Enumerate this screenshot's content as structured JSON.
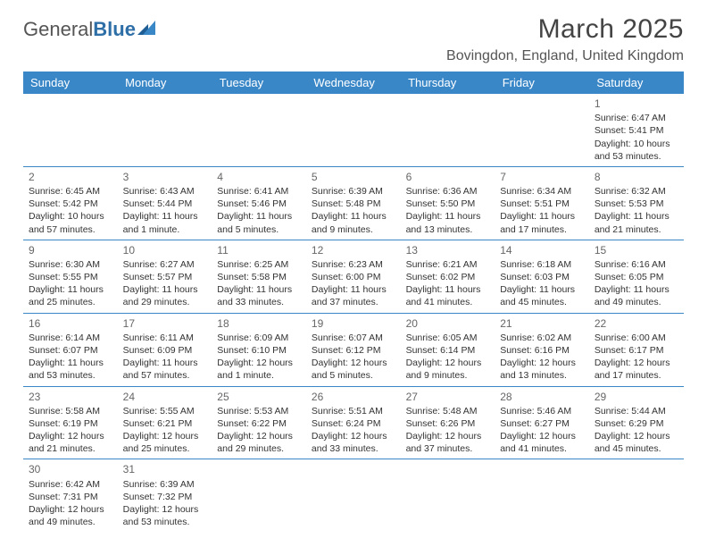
{
  "brand": {
    "part1": "General",
    "part2": "Blue"
  },
  "title": "March 2025",
  "location": "Bovingdon, England, United Kingdom",
  "colors": {
    "header_bg": "#3a87c8",
    "header_text": "#ffffff",
    "border": "#3a87c8",
    "text": "#333333",
    "daynum": "#666666",
    "background": "#ffffff"
  },
  "daynames": [
    "Sunday",
    "Monday",
    "Tuesday",
    "Wednesday",
    "Thursday",
    "Friday",
    "Saturday"
  ],
  "weeks": [
    [
      null,
      null,
      null,
      null,
      null,
      null,
      {
        "n": "1",
        "sr": "Sunrise: 6:47 AM",
        "ss": "Sunset: 5:41 PM",
        "dl": "Daylight: 10 hours and 53 minutes."
      }
    ],
    [
      {
        "n": "2",
        "sr": "Sunrise: 6:45 AM",
        "ss": "Sunset: 5:42 PM",
        "dl": "Daylight: 10 hours and 57 minutes."
      },
      {
        "n": "3",
        "sr": "Sunrise: 6:43 AM",
        "ss": "Sunset: 5:44 PM",
        "dl": "Daylight: 11 hours and 1 minute."
      },
      {
        "n": "4",
        "sr": "Sunrise: 6:41 AM",
        "ss": "Sunset: 5:46 PM",
        "dl": "Daylight: 11 hours and 5 minutes."
      },
      {
        "n": "5",
        "sr": "Sunrise: 6:39 AM",
        "ss": "Sunset: 5:48 PM",
        "dl": "Daylight: 11 hours and 9 minutes."
      },
      {
        "n": "6",
        "sr": "Sunrise: 6:36 AM",
        "ss": "Sunset: 5:50 PM",
        "dl": "Daylight: 11 hours and 13 minutes."
      },
      {
        "n": "7",
        "sr": "Sunrise: 6:34 AM",
        "ss": "Sunset: 5:51 PM",
        "dl": "Daylight: 11 hours and 17 minutes."
      },
      {
        "n": "8",
        "sr": "Sunrise: 6:32 AM",
        "ss": "Sunset: 5:53 PM",
        "dl": "Daylight: 11 hours and 21 minutes."
      }
    ],
    [
      {
        "n": "9",
        "sr": "Sunrise: 6:30 AM",
        "ss": "Sunset: 5:55 PM",
        "dl": "Daylight: 11 hours and 25 minutes."
      },
      {
        "n": "10",
        "sr": "Sunrise: 6:27 AM",
        "ss": "Sunset: 5:57 PM",
        "dl": "Daylight: 11 hours and 29 minutes."
      },
      {
        "n": "11",
        "sr": "Sunrise: 6:25 AM",
        "ss": "Sunset: 5:58 PM",
        "dl": "Daylight: 11 hours and 33 minutes."
      },
      {
        "n": "12",
        "sr": "Sunrise: 6:23 AM",
        "ss": "Sunset: 6:00 PM",
        "dl": "Daylight: 11 hours and 37 minutes."
      },
      {
        "n": "13",
        "sr": "Sunrise: 6:21 AM",
        "ss": "Sunset: 6:02 PM",
        "dl": "Daylight: 11 hours and 41 minutes."
      },
      {
        "n": "14",
        "sr": "Sunrise: 6:18 AM",
        "ss": "Sunset: 6:03 PM",
        "dl": "Daylight: 11 hours and 45 minutes."
      },
      {
        "n": "15",
        "sr": "Sunrise: 6:16 AM",
        "ss": "Sunset: 6:05 PM",
        "dl": "Daylight: 11 hours and 49 minutes."
      }
    ],
    [
      {
        "n": "16",
        "sr": "Sunrise: 6:14 AM",
        "ss": "Sunset: 6:07 PM",
        "dl": "Daylight: 11 hours and 53 minutes."
      },
      {
        "n": "17",
        "sr": "Sunrise: 6:11 AM",
        "ss": "Sunset: 6:09 PM",
        "dl": "Daylight: 11 hours and 57 minutes."
      },
      {
        "n": "18",
        "sr": "Sunrise: 6:09 AM",
        "ss": "Sunset: 6:10 PM",
        "dl": "Daylight: 12 hours and 1 minute."
      },
      {
        "n": "19",
        "sr": "Sunrise: 6:07 AM",
        "ss": "Sunset: 6:12 PM",
        "dl": "Daylight: 12 hours and 5 minutes."
      },
      {
        "n": "20",
        "sr": "Sunrise: 6:05 AM",
        "ss": "Sunset: 6:14 PM",
        "dl": "Daylight: 12 hours and 9 minutes."
      },
      {
        "n": "21",
        "sr": "Sunrise: 6:02 AM",
        "ss": "Sunset: 6:16 PM",
        "dl": "Daylight: 12 hours and 13 minutes."
      },
      {
        "n": "22",
        "sr": "Sunrise: 6:00 AM",
        "ss": "Sunset: 6:17 PM",
        "dl": "Daylight: 12 hours and 17 minutes."
      }
    ],
    [
      {
        "n": "23",
        "sr": "Sunrise: 5:58 AM",
        "ss": "Sunset: 6:19 PM",
        "dl": "Daylight: 12 hours and 21 minutes."
      },
      {
        "n": "24",
        "sr": "Sunrise: 5:55 AM",
        "ss": "Sunset: 6:21 PM",
        "dl": "Daylight: 12 hours and 25 minutes."
      },
      {
        "n": "25",
        "sr": "Sunrise: 5:53 AM",
        "ss": "Sunset: 6:22 PM",
        "dl": "Daylight: 12 hours and 29 minutes."
      },
      {
        "n": "26",
        "sr": "Sunrise: 5:51 AM",
        "ss": "Sunset: 6:24 PM",
        "dl": "Daylight: 12 hours and 33 minutes."
      },
      {
        "n": "27",
        "sr": "Sunrise: 5:48 AM",
        "ss": "Sunset: 6:26 PM",
        "dl": "Daylight: 12 hours and 37 minutes."
      },
      {
        "n": "28",
        "sr": "Sunrise: 5:46 AM",
        "ss": "Sunset: 6:27 PM",
        "dl": "Daylight: 12 hours and 41 minutes."
      },
      {
        "n": "29",
        "sr": "Sunrise: 5:44 AM",
        "ss": "Sunset: 6:29 PM",
        "dl": "Daylight: 12 hours and 45 minutes."
      }
    ],
    [
      {
        "n": "30",
        "sr": "Sunrise: 6:42 AM",
        "ss": "Sunset: 7:31 PM",
        "dl": "Daylight: 12 hours and 49 minutes."
      },
      {
        "n": "31",
        "sr": "Sunrise: 6:39 AM",
        "ss": "Sunset: 7:32 PM",
        "dl": "Daylight: 12 hours and 53 minutes."
      },
      null,
      null,
      null,
      null,
      null
    ]
  ]
}
